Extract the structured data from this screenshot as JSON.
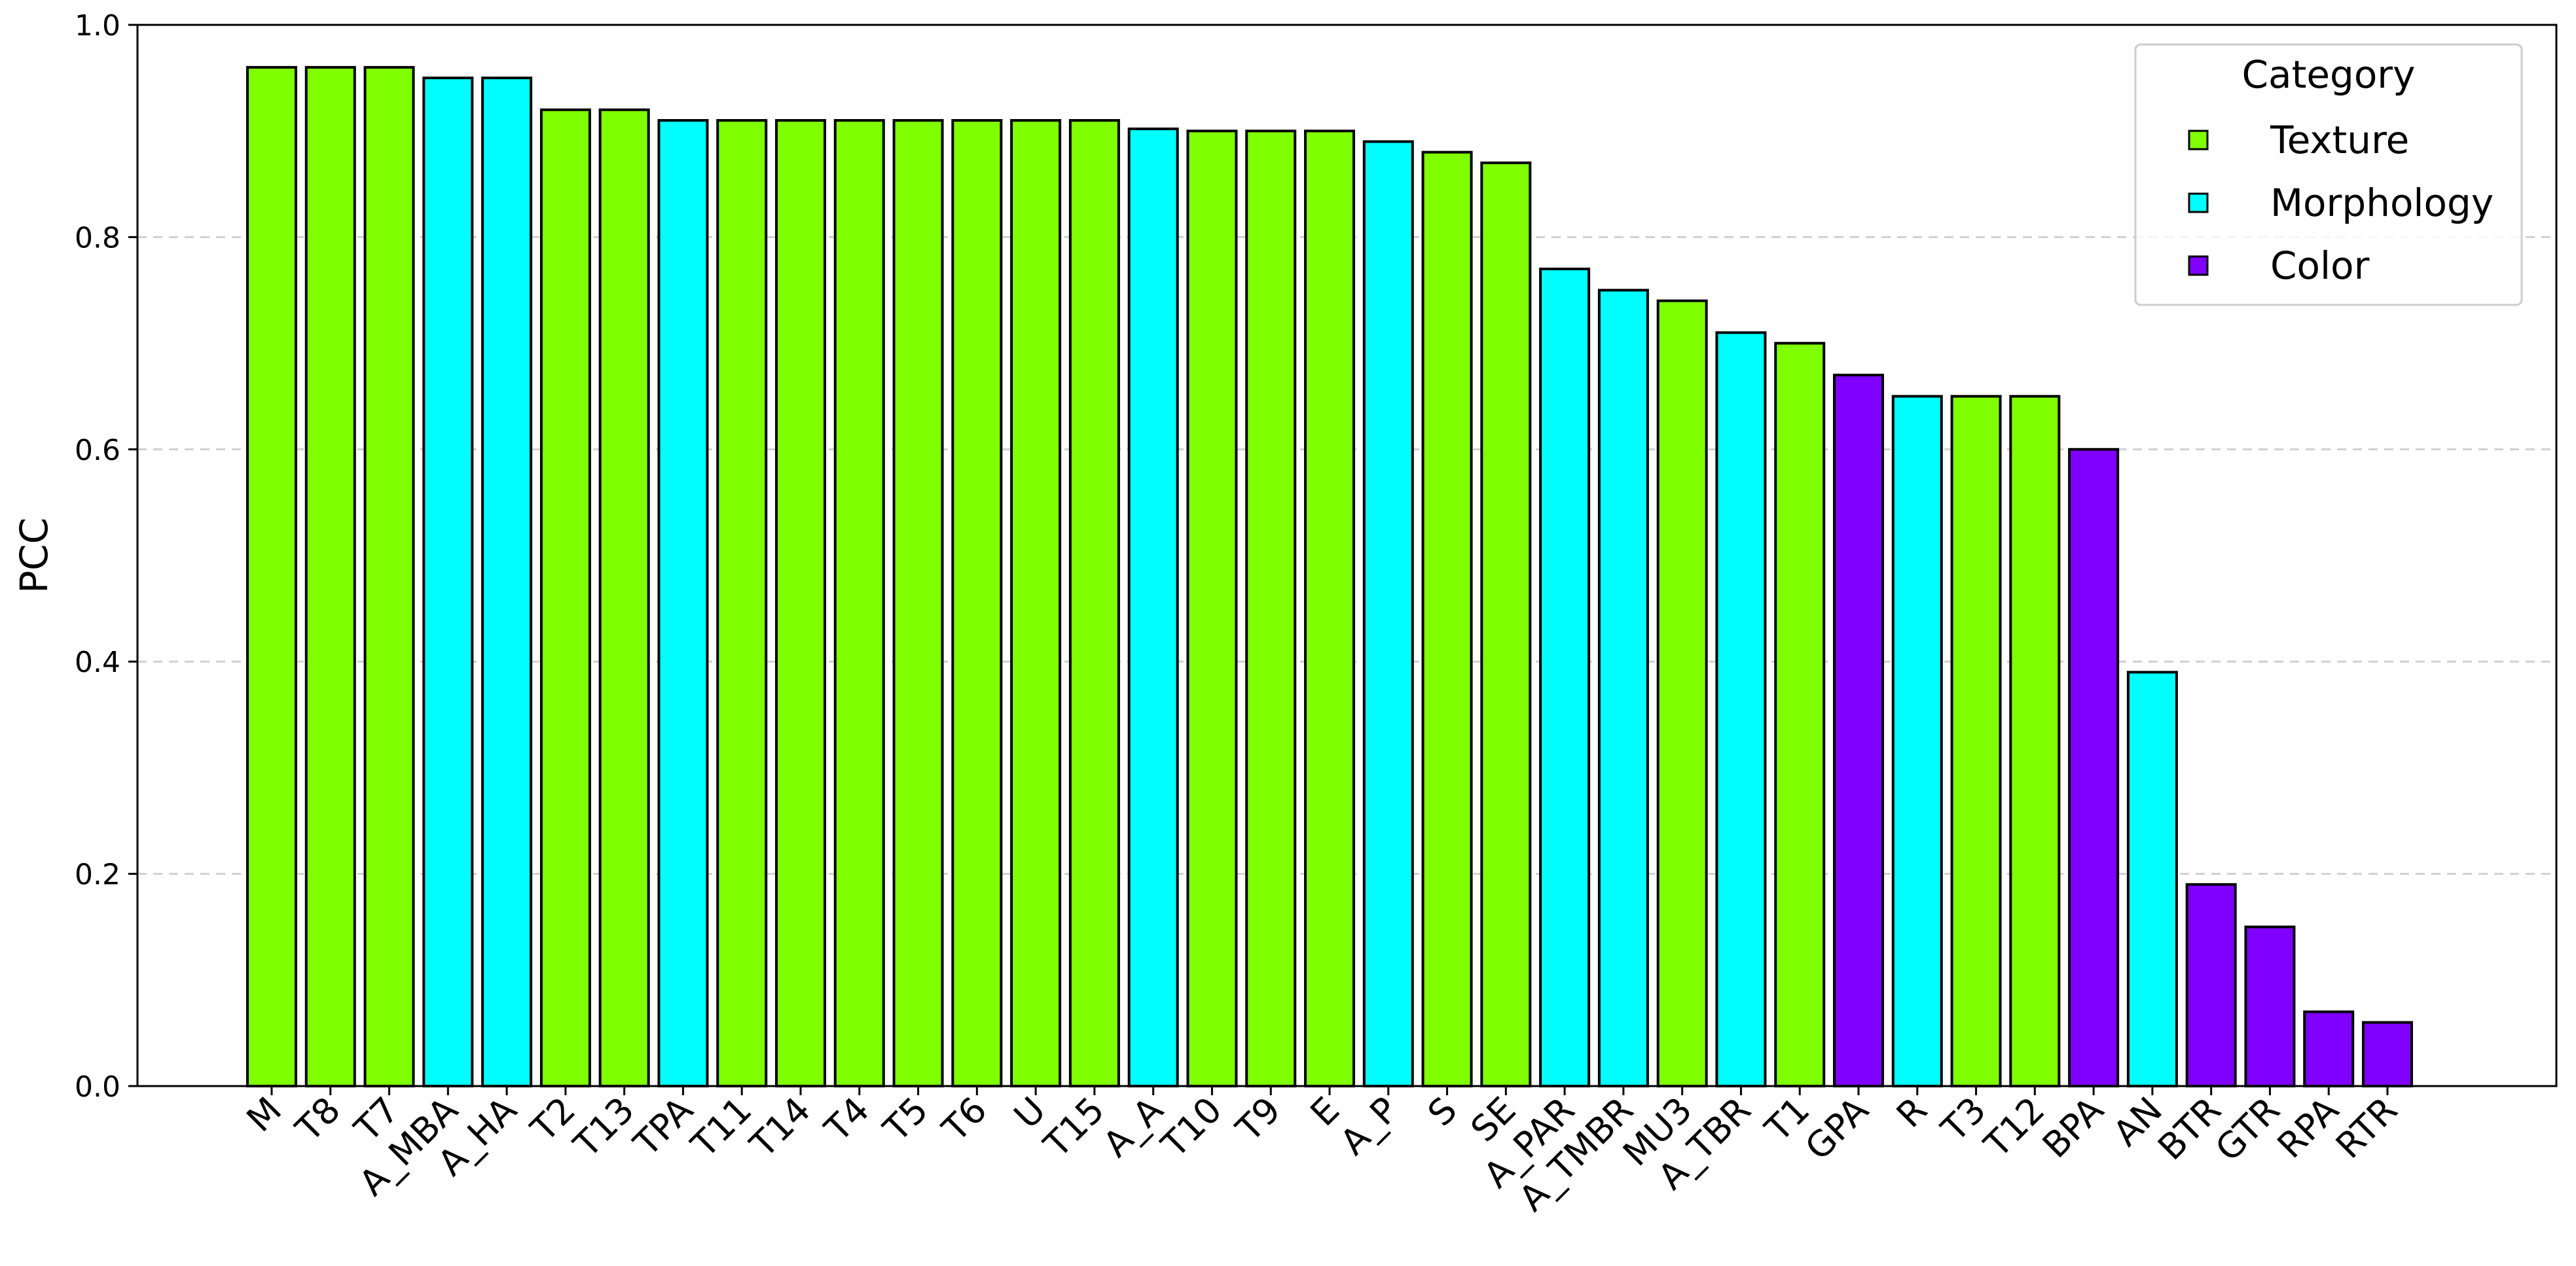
{
  "chart_data": {
    "type": "bar",
    "title": "",
    "xlabel": "",
    "ylabel": "PCC",
    "ylim": [
      0,
      1.0
    ],
    "yticks": [
      "0.0",
      "0.2",
      "0.4",
      "0.6",
      "0.8",
      "1.0"
    ],
    "grid": "horizontal dashed",
    "legend": {
      "title": "Category",
      "placement": "top-right",
      "entries": [
        {
          "name": "Texture",
          "color": "#7fff00"
        },
        {
          "name": "Morphology",
          "color": "#00ffff"
        },
        {
          "name": "Color",
          "color": "#7f00ff"
        }
      ]
    },
    "categories": [
      "M",
      "T8",
      "T7",
      "A_MBA",
      "A_HA",
      "T2",
      "T13",
      "TPA",
      "T11",
      "T14",
      "T4",
      "T5",
      "T6",
      "U",
      "T15",
      "A_A",
      "T10",
      "T9",
      "E",
      "A_P",
      "S",
      "SE",
      "A_PAR",
      "A_TMBR",
      "MU3",
      "A_TBR",
      "T1",
      "GPA",
      "R",
      "T3",
      "T12",
      "BPA",
      "AN",
      "BTR",
      "GTR",
      "RPA",
      "RTR"
    ],
    "values": [
      0.96,
      0.96,
      0.96,
      0.95,
      0.95,
      0.92,
      0.92,
      0.91,
      0.91,
      0.91,
      0.91,
      0.91,
      0.91,
      0.91,
      0.91,
      0.902,
      0.9,
      0.9,
      0.9,
      0.89,
      0.88,
      0.87,
      0.77,
      0.75,
      0.74,
      0.71,
      0.7,
      0.67,
      0.65,
      0.65,
      0.65,
      0.6,
      0.39,
      0.19,
      0.15,
      0.07,
      0.06
    ],
    "bar_category": [
      "Texture",
      "Texture",
      "Texture",
      "Morphology",
      "Morphology",
      "Texture",
      "Texture",
      "Morphology",
      "Texture",
      "Texture",
      "Texture",
      "Texture",
      "Texture",
      "Texture",
      "Texture",
      "Morphology",
      "Texture",
      "Texture",
      "Texture",
      "Morphology",
      "Texture",
      "Texture",
      "Morphology",
      "Morphology",
      "Texture",
      "Morphology",
      "Texture",
      "Color",
      "Morphology",
      "Texture",
      "Texture",
      "Color",
      "Morphology",
      "Color",
      "Color",
      "Color",
      "Color"
    ]
  }
}
